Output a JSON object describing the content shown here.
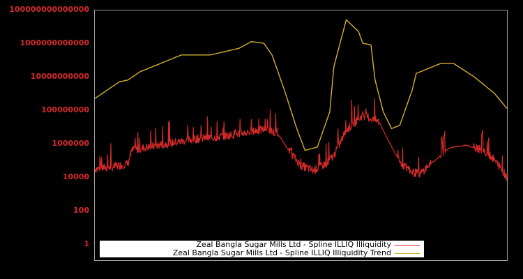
{
  "chart_data": {
    "type": "line",
    "title": "",
    "xlabel": "",
    "ylabel": "",
    "y_scale": "log",
    "ylim": [
      0.1,
      100000000000000
    ],
    "y_ticks": [
      {
        "label": "100000000000000",
        "value": 100000000000000
      },
      {
        "label": "1000000000000",
        "value": 1000000000000
      },
      {
        "label": "10000000000",
        "value": 10000000000
      },
      {
        "label": "100000000",
        "value": 100000000
      },
      {
        "label": "1000000",
        "value": 1000000
      },
      {
        "label": "10000",
        "value": 10000
      },
      {
        "label": "100",
        "value": 100
      },
      {
        "label": "1",
        "value": 1
      }
    ],
    "x_ticks": [],
    "grid": false,
    "legend_position": "bottom-left inside",
    "series": [
      {
        "name": "Zeal Bangla Sugar Mills Ltd - Spline ILLIQ Illiquidity",
        "color": "#d42a2a",
        "description": "Noisy illiquidity series; approx log10 values sampled left to right",
        "approx_points_log10": [
          [
            0.0,
            4.5
          ],
          [
            0.04,
            4.6
          ],
          [
            0.08,
            4.8
          ],
          [
            0.09,
            5.6
          ],
          [
            0.15,
            5.9
          ],
          [
            0.2,
            6.1
          ],
          [
            0.25,
            6.3
          ],
          [
            0.3,
            6.4
          ],
          [
            0.35,
            6.6
          ],
          [
            0.4,
            6.8
          ],
          [
            0.42,
            6.9
          ],
          [
            0.45,
            6.4
          ],
          [
            0.47,
            5.6
          ],
          [
            0.5,
            4.7
          ],
          [
            0.53,
            4.4
          ],
          [
            0.56,
            4.8
          ],
          [
            0.58,
            5.3
          ],
          [
            0.61,
            6.8
          ],
          [
            0.65,
            7.7
          ],
          [
            0.69,
            7.3
          ],
          [
            0.71,
            6.3
          ],
          [
            0.74,
            4.9
          ],
          [
            0.77,
            4.3
          ],
          [
            0.79,
            4.2
          ],
          [
            0.81,
            4.7
          ],
          [
            0.84,
            5.3
          ],
          [
            0.85,
            5.6
          ],
          [
            0.87,
            5.8
          ],
          [
            0.9,
            5.9
          ],
          [
            0.93,
            5.7
          ],
          [
            0.96,
            5.3
          ],
          [
            0.98,
            4.7
          ],
          [
            1.0,
            4.0
          ]
        ]
      },
      {
        "name": "Zeal Bangla Sugar Mills Ltd - Spline ILLIQ Illiquidity Trend",
        "color": "#d4b030",
        "description": "Smoothed trend; approx log10 values sampled left to right",
        "approx_points_log10": [
          [
            0.0,
            8.7
          ],
          [
            0.06,
            9.7
          ],
          [
            0.08,
            9.8
          ],
          [
            0.11,
            10.3
          ],
          [
            0.21,
            11.3
          ],
          [
            0.28,
            11.3
          ],
          [
            0.35,
            11.7
          ],
          [
            0.38,
            12.1
          ],
          [
            0.41,
            12.0
          ],
          [
            0.43,
            11.3
          ],
          [
            0.46,
            9.2
          ],
          [
            0.49,
            6.9
          ],
          [
            0.51,
            5.6
          ],
          [
            0.54,
            5.8
          ],
          [
            0.57,
            7.9
          ],
          [
            0.58,
            10.6
          ],
          [
            0.61,
            13.4
          ],
          [
            0.64,
            12.7
          ],
          [
            0.65,
            12.0
          ],
          [
            0.67,
            11.9
          ],
          [
            0.68,
            9.8
          ],
          [
            0.7,
            7.9
          ],
          [
            0.72,
            6.9
          ],
          [
            0.74,
            7.1
          ],
          [
            0.77,
            9.2
          ],
          [
            0.78,
            10.2
          ],
          [
            0.8,
            10.4
          ],
          [
            0.84,
            10.8
          ],
          [
            0.87,
            10.8
          ],
          [
            0.92,
            10.0
          ],
          [
            0.97,
            9.0
          ],
          [
            1.0,
            8.1
          ]
        ]
      }
    ]
  },
  "legend": {
    "items": [
      {
        "label": "Zeal Bangla Sugar Mills Ltd - Spline ILLIQ Illiquidity",
        "color": "#d42a2a"
      },
      {
        "label": "Zeal Bangla Sugar Mills Ltd - Spline ILLIQ Illiquidity Trend",
        "color": "#d4b030"
      }
    ]
  },
  "axis": {
    "y_labels": [
      "100000000000000",
      "1000000000000",
      "10000000000",
      "100000000",
      "1000000",
      "10000",
      "100",
      "1"
    ]
  }
}
